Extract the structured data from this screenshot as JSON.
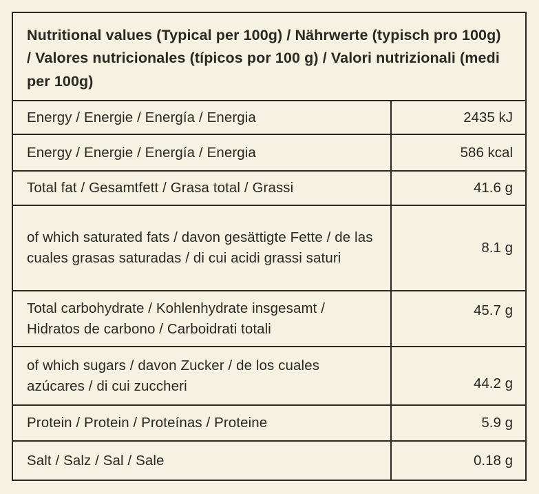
{
  "page": {
    "background_color": "#f6f2e1",
    "border_color": "#2b2620",
    "text_color": "#2b2722"
  },
  "table": {
    "title": "Nutritional values (Typical per 100g) / Nährwerte (typisch pro 100g) / Valores nutricionales (típicos por 100 g) / Valori nutrizionali (medi per 100g)",
    "rows": [
      {
        "label": "Energy / Energie / Energía / Energia",
        "value": "2435 kJ"
      },
      {
        "label": "Energy / Energie / Energía / Energia",
        "value": "586 kcal"
      },
      {
        "label": "Total fat / Gesamtfett / Grasa total / Grassi",
        "value": "41.6 g"
      },
      {
        "label": "of which saturated fats / davon gesättigte Fette / de las cuales grasas saturadas / di cui acidi grassi saturi",
        "value": "8.1 g"
      },
      {
        "label": "Total carbohydrate / Kohlenhydrate insgesamt / Hidratos de carbono / Carboidrati totali",
        "value": "45.7 g"
      },
      {
        "label": "of which sugars / davon Zucker / de los cuales azúcares / di cui zuccheri",
        "value": "44.2 g"
      },
      {
        "label": "Protein / Protein / Proteínas / Proteine",
        "value": "5.9 g"
      },
      {
        "label": "Salt / Salz / Sal / Sale",
        "value": "0.18 g"
      }
    ]
  }
}
